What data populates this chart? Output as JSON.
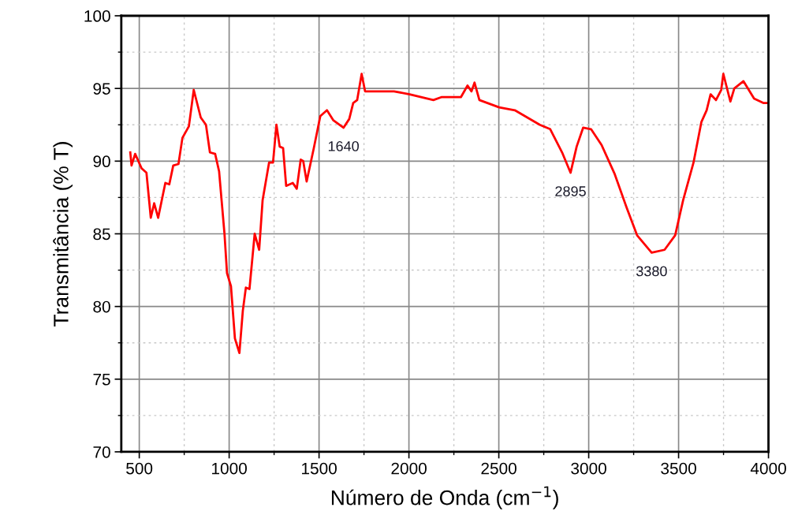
{
  "chart_data": {
    "type": "line",
    "xlabel": "Número de Onda (cm$^{−1}$)",
    "ylabel": "Transmitância (% T)",
    "xlim": [
      400,
      4000
    ],
    "xticks": [
      500,
      1000,
      1500,
      2000,
      2500,
      3000,
      3500,
      4000
    ],
    "ylim": [
      70,
      100
    ],
    "yticks": [
      70,
      75,
      80,
      85,
      90,
      95,
      100
    ],
    "grid": true,
    "marker": "none",
    "line_style": "solid",
    "series": [
      {
        "color": "#ff0000",
        "x": [
          450,
          457,
          477,
          513,
          540,
          564,
          583,
          605,
          645,
          667,
          689,
          718,
          740,
          776,
          803,
          842,
          871,
          893,
          922,
          944,
          974,
          988,
          1010,
          1032,
          1057,
          1076,
          1093,
          1113,
          1142,
          1167,
          1186,
          1222,
          1244,
          1263,
          1281,
          1300,
          1317,
          1354,
          1376,
          1398,
          1412,
          1431,
          1471,
          1507,
          1544,
          1580,
          1636,
          1668,
          1690,
          1712,
          1737,
          1756,
          1917,
          2004,
          2136,
          2180,
          2289,
          2326,
          2348,
          2365,
          2392,
          2502,
          2589,
          2728,
          2786,
          2852,
          2899,
          2933,
          2969,
          3013,
          3072,
          3145,
          3211,
          3269,
          3350,
          3422,
          3481,
          3525,
          3583,
          3627,
          3656,
          3678,
          3708,
          3737,
          3749,
          3788,
          3810,
          3861,
          3920,
          3971,
          4000
        ],
        "values": [
          90.6,
          89.7,
          90.5,
          89.5,
          89.2,
          86.1,
          87.1,
          86.1,
          88.5,
          88.4,
          89.7,
          89.8,
          91.6,
          92.4,
          94.9,
          93.0,
          92.5,
          90.6,
          90.5,
          89.3,
          85.0,
          82.3,
          81.4,
          77.8,
          76.8,
          79.7,
          81.3,
          81.2,
          85.0,
          83.9,
          87.3,
          89.9,
          89.9,
          92.5,
          91.0,
          90.9,
          88.3,
          88.5,
          88.1,
          90.1,
          90.0,
          88.6,
          90.9,
          93.1,
          93.5,
          92.8,
          92.3,
          92.9,
          94.0,
          94.2,
          96.0,
          94.8,
          94.8,
          94.6,
          94.2,
          94.4,
          94.4,
          95.2,
          94.8,
          95.4,
          94.2,
          93.7,
          93.5,
          92.5,
          92.2,
          90.6,
          89.2,
          91.0,
          92.3,
          92.2,
          91.1,
          89.1,
          86.8,
          84.9,
          83.7,
          83.9,
          84.9,
          87.3,
          89.9,
          92.7,
          93.5,
          94.6,
          94.2,
          94.9,
          96.0,
          94.1,
          95.0,
          95.5,
          94.3,
          94.0,
          94.0
        ]
      }
    ],
    "annotations": [
      {
        "text": "1640",
        "x": 1636,
        "y": 92.3
      },
      {
        "text": "2895",
        "x": 2899,
        "y": 89.2
      },
      {
        "text": "3380",
        "x": 3350,
        "y": 83.7
      }
    ]
  }
}
